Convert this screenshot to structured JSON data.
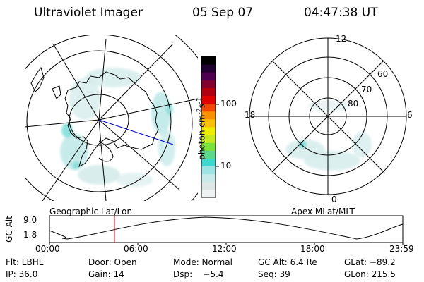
{
  "header": {
    "instrument": "Ultraviolet Imager",
    "date": "05 Sep 07",
    "time": "04:47:38 UT"
  },
  "left_panel": {
    "label": "Geographic Lat/Lon"
  },
  "right_panel": {
    "label": "Apex MLat/MLT",
    "mlt_labels": [
      "12",
      "18",
      "6",
      "0"
    ],
    "lat_labels": [
      "60",
      "70",
      "80"
    ]
  },
  "colorbar": {
    "unit": "photon cm",
    "unit_exp1": "-2",
    "unit_s": "s",
    "unit_exp2": "-1",
    "ticks": [
      "100",
      "10"
    ],
    "colors": [
      "#eef2f2",
      "#dfe6e6",
      "#c8eaea",
      "#9ce4e4",
      "#3cd8d0",
      "#5cd88c",
      "#7ce03c",
      "#c8e820",
      "#f0ec00",
      "#f8c000",
      "#f89000",
      "#f04800",
      "#e00000",
      "#b00010",
      "#800030",
      "#500050",
      "#200030",
      "#000000"
    ]
  },
  "altitude_plot": {
    "ylabel": "GC Alt",
    "yticks": [
      "9.0",
      "1.8"
    ],
    "xticks": [
      "00:00",
      "06:00",
      "12:00",
      "18:00",
      "23:59"
    ],
    "marker_color": "#e00000"
  },
  "info": {
    "flt": "Flt: LBHL",
    "door": "Door: Open",
    "mode": "Mode: Normal",
    "gc_alt": "GC Alt: 6.4 Re",
    "glat": "GLat: −89.2",
    "ip": "IP: 36.0",
    "gain": "Gain: 14",
    "dsp": "Dsp:    −5.4",
    "seq": "Seq: 39",
    "glon": "GLon: 215.5"
  }
}
